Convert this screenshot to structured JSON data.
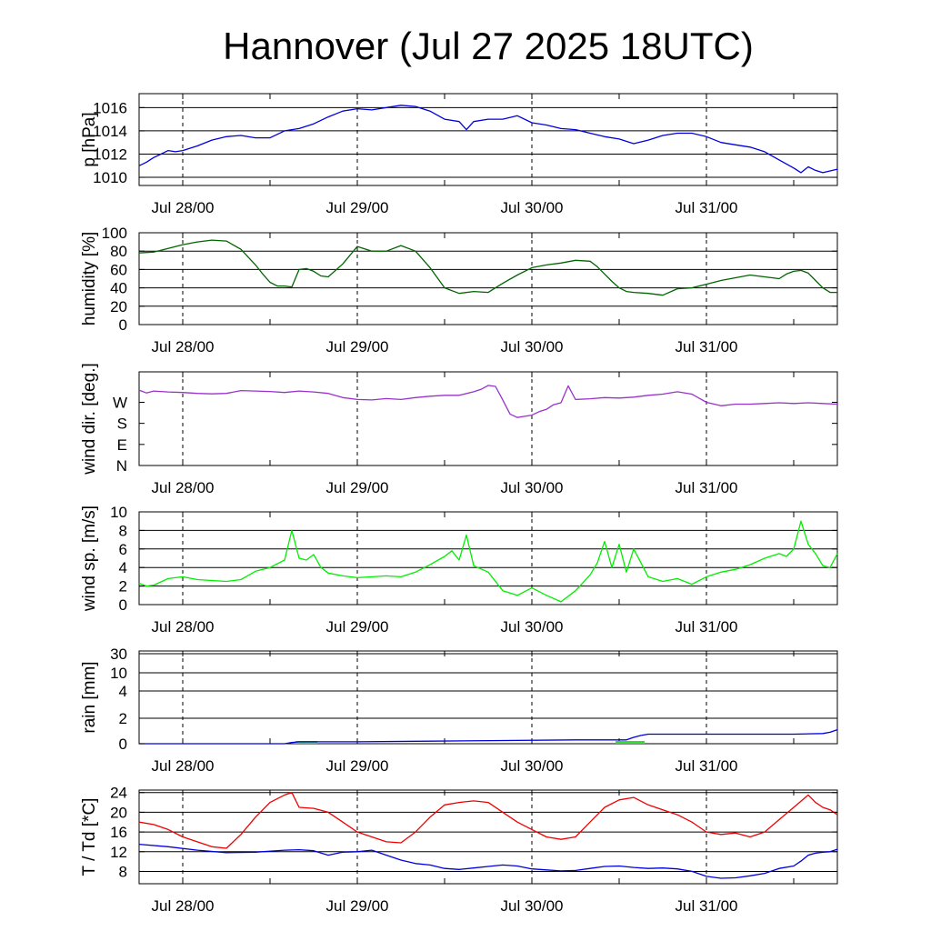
{
  "title": "Hannover (Jul 27 2025 18UTC)",
  "chart_data": [
    {
      "type": "line",
      "ylabel": "p [hPa]",
      "x_unit": "hours after Jul 27 2025 18UTC",
      "ylim": [
        1009.3,
        1017.2
      ],
      "yticks": [
        1010,
        1012,
        1014,
        1016
      ],
      "grid_y": [
        1010,
        1012,
        1014,
        1016
      ],
      "xtick_labels": [
        "Jul 28/00",
        "Jul 29/00",
        "Jul 30/00",
        "Jul 31/00"
      ],
      "xtick_hours": [
        6,
        30,
        54,
        78
      ],
      "series": [
        {
          "color": "#0000dd",
          "x": [
            0,
            1,
            2,
            3,
            4,
            5,
            6,
            8,
            10,
            12,
            14,
            16,
            18,
            20,
            22,
            24,
            26,
            28,
            30,
            32,
            34,
            36,
            38,
            40,
            42,
            44,
            45,
            46,
            48,
            50,
            52,
            54,
            56,
            58,
            60,
            62,
            64,
            66,
            68,
            70,
            72,
            74,
            76,
            78,
            80,
            82,
            84,
            86,
            88,
            90,
            91,
            92,
            93,
            94,
            96
          ],
          "values": [
            1011.0,
            1011.3,
            1011.7,
            1012.0,
            1012.3,
            1012.2,
            1012.3,
            1012.7,
            1013.2,
            1013.5,
            1013.6,
            1013.4,
            1013.4,
            1014.0,
            1014.2,
            1014.6,
            1015.2,
            1015.7,
            1015.9,
            1015.8,
            1016.0,
            1016.2,
            1016.1,
            1015.7,
            1015.0,
            1014.8,
            1014.1,
            1014.8,
            1015.0,
            1015.0,
            1015.3,
            1014.7,
            1014.5,
            1014.2,
            1014.1,
            1013.8,
            1013.5,
            1013.3,
            1012.9,
            1013.2,
            1013.6,
            1013.8,
            1013.8,
            1013.5,
            1013.0,
            1012.8,
            1012.6,
            1012.2,
            1011.5,
            1010.8,
            1010.4,
            1010.9,
            1010.6,
            1010.4,
            1010.7
          ]
        }
      ]
    },
    {
      "type": "line",
      "ylabel": "humidity [%]",
      "x_unit": "hours after Jul 27 2025 18UTC",
      "ylim": [
        0,
        100
      ],
      "yticks": [
        0,
        20,
        40,
        60,
        80,
        100
      ],
      "grid_y": [
        20,
        40,
        60,
        80
      ],
      "xtick_labels": [
        "Jul 28/00",
        "Jul 29/00",
        "Jul 30/00",
        "Jul 31/00"
      ],
      "xtick_hours": [
        6,
        30,
        54,
        78
      ],
      "series": [
        {
          "color": "#006400",
          "x": [
            0,
            2,
            4,
            6,
            8,
            10,
            12,
            14,
            16,
            17,
            18,
            19,
            20,
            21,
            22,
            23,
            24,
            25,
            26,
            28,
            30,
            32,
            34,
            36,
            38,
            40,
            42,
            44,
            46,
            48,
            50,
            52,
            54,
            56,
            58,
            60,
            62,
            63,
            64,
            65,
            66,
            67,
            68,
            70,
            72,
            74,
            76,
            78,
            80,
            82,
            84,
            86,
            88,
            89,
            90,
            91,
            92,
            93,
            94,
            95,
            96
          ],
          "values": [
            78,
            79,
            83,
            87,
            90,
            92,
            91,
            82,
            65,
            55,
            46,
            42,
            42,
            41,
            60,
            61,
            58,
            53,
            52,
            66,
            85,
            80,
            80,
            86,
            80,
            62,
            40,
            34,
            36,
            35,
            45,
            54,
            62,
            65,
            67,
            70,
            69,
            63,
            55,
            47,
            40,
            36,
            35,
            34,
            32,
            39,
            40,
            44,
            48,
            51,
            54,
            52,
            50,
            55,
            58,
            59,
            56,
            48,
            40,
            35,
            35
          ]
        }
      ]
    },
    {
      "type": "line",
      "ylabel": "wind dir. [deg.]",
      "x_unit": "hours after Jul 27 2025 18UTC",
      "ylim": [
        0,
        400
      ],
      "yticks": [
        0,
        90,
        180,
        270
      ],
      "ytick_labels": [
        "N",
        "E",
        "S",
        "W"
      ],
      "grid_y": [],
      "xtick_labels": [
        "Jul 28/00",
        "Jul 29/00",
        "Jul 30/00",
        "Jul 31/00"
      ],
      "xtick_hours": [
        6,
        30,
        54,
        78
      ],
      "series": [
        {
          "color": "#9932cc",
          "x": [
            0,
            1,
            2,
            4,
            6,
            8,
            10,
            12,
            14,
            16,
            18,
            20,
            22,
            24,
            26,
            28,
            30,
            32,
            34,
            36,
            38,
            40,
            42,
            44,
            46,
            47,
            48,
            49,
            50,
            51,
            52,
            53,
            54,
            55,
            56,
            57,
            58,
            59,
            60,
            62,
            64,
            66,
            68,
            70,
            72,
            74,
            76,
            78,
            80,
            82,
            84,
            86,
            88,
            90,
            92,
            94,
            96
          ],
          "values": [
            322,
            310,
            318,
            314,
            312,
            308,
            306,
            308,
            320,
            318,
            316,
            312,
            318,
            314,
            308,
            290,
            282,
            280,
            286,
            282,
            290,
            296,
            300,
            300,
            315,
            325,
            342,
            338,
            280,
            220,
            205,
            210,
            215,
            230,
            240,
            260,
            268,
            340,
            282,
            285,
            290,
            288,
            292,
            300,
            305,
            315,
            305,
            270,
            255,
            262,
            262,
            265,
            268,
            265,
            268,
            265,
            262
          ]
        }
      ]
    },
    {
      "type": "line",
      "ylabel": "wind sp. [m/s]",
      "x_unit": "hours after Jul 27 2025 18UTC",
      "ylim": [
        0,
        10
      ],
      "yticks": [
        0,
        2,
        4,
        6,
        8,
        10
      ],
      "grid_y": [
        2,
        4,
        6,
        8
      ],
      "xtick_labels": [
        "Jul 28/00",
        "Jul 29/00",
        "Jul 30/00",
        "Jul 31/00"
      ],
      "xtick_hours": [
        6,
        30,
        54,
        78
      ],
      "series": [
        {
          "color": "#00ee00",
          "x": [
            0,
            1,
            2,
            4,
            6,
            8,
            10,
            12,
            14,
            16,
            18,
            20,
            21,
            22,
            23,
            24,
            25,
            26,
            28,
            30,
            32,
            34,
            36,
            38,
            40,
            42,
            43,
            44,
            45,
            46,
            48,
            50,
            52,
            54,
            56,
            58,
            60,
            62,
            63,
            64,
            65,
            66,
            67,
            68,
            70,
            72,
            74,
            76,
            78,
            80,
            82,
            84,
            86,
            88,
            89,
            90,
            91,
            92,
            93,
            94,
            95,
            96
          ],
          "values": [
            2.3,
            2.0,
            2.1,
            2.8,
            3.0,
            2.7,
            2.6,
            2.5,
            2.7,
            3.6,
            4.0,
            4.8,
            8.0,
            5.0,
            4.8,
            5.4,
            4.0,
            3.4,
            3.1,
            2.9,
            3.0,
            3.1,
            3.0,
            3.5,
            4.3,
            5.2,
            5.8,
            4.8,
            7.5,
            4.2,
            3.5,
            1.5,
            1.0,
            1.8,
            1.0,
            0.3,
            1.5,
            3.2,
            4.5,
            6.8,
            4.0,
            6.5,
            3.5,
            6.0,
            3.0,
            2.5,
            2.8,
            2.2,
            3.0,
            3.5,
            3.8,
            4.3,
            5.0,
            5.5,
            5.2,
            6.0,
            9.0,
            6.5,
            5.5,
            4.2,
            4.0,
            5.5
          ]
        }
      ]
    },
    {
      "type": "line",
      "ylabel": "rain [mm]",
      "x_unit": "hours after Jul 27 2025 18UTC",
      "ylim": [
        0,
        30
      ],
      "yticks": [
        0,
        2,
        4,
        10,
        30
      ],
      "grid_y": [
        2,
        4,
        10,
        30
      ],
      "xtick_labels": [
        "Jul 28/00",
        "Jul 29/00",
        "Jul 30/00",
        "Jul 31/00"
      ],
      "xtick_hours": [
        6,
        30,
        54,
        78
      ],
      "series": [
        {
          "color": "#0000dd",
          "x": [
            0,
            20,
            21,
            22,
            30,
            40,
            50,
            60,
            67,
            68,
            69,
            70,
            80,
            90,
            94,
            95,
            96
          ],
          "values": [
            0,
            0,
            0.1,
            0.15,
            0.15,
            0.2,
            0.25,
            0.3,
            0.3,
            0.5,
            0.65,
            0.75,
            0.75,
            0.75,
            0.8,
            0.9,
            1.1
          ]
        }
      ],
      "bars": {
        "color": "#33dd33",
        "x": [
          22,
          23,
          24,
          66,
          67,
          68,
          69
        ],
        "values": [
          0.05,
          0.05,
          0.05,
          0.2,
          0.2,
          0.2,
          0.15
        ]
      }
    },
    {
      "type": "line",
      "ylabel": "T / Td [*C]",
      "x_unit": "hours after Jul 27 2025 18UTC",
      "ylim": [
        5.5,
        24.5
      ],
      "yticks": [
        8,
        12,
        16,
        20,
        24
      ],
      "grid_y": [
        8,
        12,
        16,
        20,
        24
      ],
      "xtick_labels": [
        "Jul 28/00",
        "Jul 29/00",
        "Jul 30/00",
        "Jul 31/00"
      ],
      "xtick_hours": [
        6,
        30,
        54,
        78
      ],
      "series": [
        {
          "color": "#ee0000",
          "x": [
            0,
            2,
            4,
            6,
            8,
            10,
            12,
            14,
            16,
            18,
            20,
            21,
            22,
            24,
            26,
            28,
            30,
            32,
            34,
            36,
            38,
            40,
            42,
            44,
            46,
            48,
            50,
            52,
            54,
            56,
            58,
            60,
            62,
            64,
            66,
            68,
            70,
            72,
            74,
            76,
            78,
            80,
            82,
            84,
            86,
            88,
            90,
            92,
            93,
            94,
            95,
            96
          ],
          "values": [
            18,
            17.5,
            16.5,
            15,
            14,
            13,
            12.7,
            15.5,
            19,
            22,
            23.5,
            24,
            21,
            20.8,
            20,
            18,
            16,
            15,
            14,
            13.8,
            16,
            19,
            21.5,
            22,
            22.3,
            22,
            20,
            18,
            16.5,
            15,
            14.5,
            15,
            18,
            21,
            22.5,
            23,
            21.5,
            20.5,
            19.5,
            18,
            16,
            15.5,
            15.8,
            15,
            16,
            18.5,
            21,
            23.5,
            22,
            21,
            20.5,
            19.5
          ]
        },
        {
          "color": "#0000dd",
          "x": [
            0,
            4,
            8,
            12,
            16,
            20,
            22,
            24,
            26,
            28,
            30,
            32,
            34,
            36,
            38,
            40,
            42,
            44,
            46,
            48,
            50,
            52,
            54,
            56,
            58,
            60,
            62,
            64,
            66,
            68,
            70,
            72,
            74,
            76,
            78,
            80,
            82,
            84,
            86,
            88,
            90,
            91,
            92,
            93,
            94,
            95,
            96
          ],
          "values": [
            13.5,
            13.0,
            12.3,
            11.8,
            11.9,
            12.3,
            12.4,
            12.2,
            11.3,
            11.9,
            12.0,
            12.3,
            11.3,
            10.3,
            9.6,
            9.3,
            8.6,
            8.4,
            8.7,
            9.0,
            9.3,
            9.1,
            8.5,
            8.3,
            8.1,
            8.2,
            8.6,
            9.0,
            9.1,
            8.8,
            8.6,
            8.7,
            8.5,
            8.0,
            7.0,
            6.6,
            6.7,
            7.1,
            7.6,
            8.6,
            9.1,
            10.1,
            11.3,
            11.7,
            11.9,
            12.0,
            12.5
          ]
        }
      ]
    }
  ]
}
